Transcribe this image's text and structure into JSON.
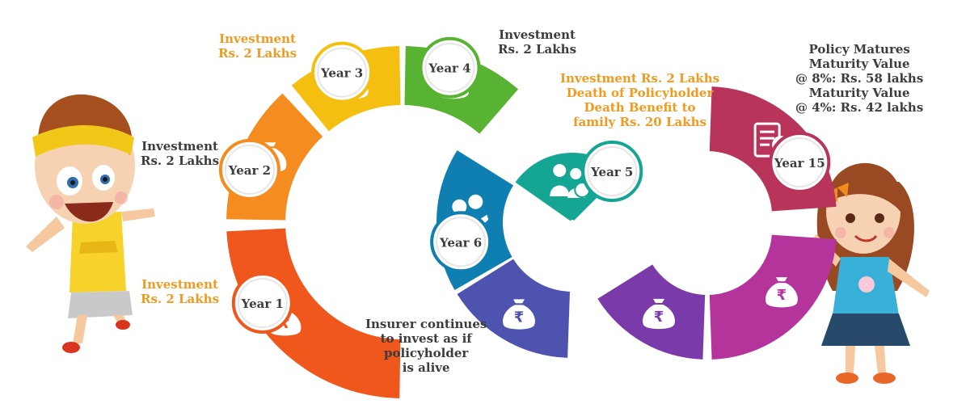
{
  "steps": [
    {
      "id": "year1",
      "label": "Year 1",
      "color": "#f0571c",
      "icon": "money-bag-icon"
    },
    {
      "id": "year2",
      "label": "Year 2",
      "color": "#f58c1f",
      "icon": "money-bag-icon"
    },
    {
      "id": "year3",
      "label": "Year 3",
      "color": "#f5bf12",
      "icon": "money-bag-icon"
    },
    {
      "id": "year4",
      "label": "Year 4",
      "color": "#58b333",
      "icon": "money-bag-icon"
    },
    {
      "id": "year5",
      "label": "Year 5",
      "color": "#14a593",
      "icon": "family-icon"
    },
    {
      "id": "year6",
      "label": "Year 6",
      "color": "#0f7fb2",
      "icon": "hand-coins-icon"
    },
    {
      "id": "seg7",
      "label": "",
      "color": "#4e53b0",
      "icon": "money-bag-icon"
    },
    {
      "id": "seg8",
      "label": "",
      "color": "#7b3aaa",
      "icon": "money-bag-icon"
    },
    {
      "id": "seg9",
      "label": "",
      "color": "#b5349b",
      "icon": "money-bag-icon"
    },
    {
      "id": "year15",
      "label": "Year 15",
      "color": "#b8345a",
      "icon": "document-rupee-icon"
    }
  ],
  "captions": {
    "year1": [
      "Investment",
      "Rs. 2 Lakhs"
    ],
    "year2": [
      "Investment",
      "Rs. 2 Lakhs"
    ],
    "year3": [
      "Investment",
      "Rs. 2 Lakhs"
    ],
    "year4": [
      "Investment",
      "Rs. 2 Lakhs"
    ],
    "year5": [
      "Investment Rs. 2 Lakhs",
      "Death of Policyholder",
      "Death Benefit to",
      "family Rs. 20 Lakhs"
    ],
    "year6": [
      "Insurer continues",
      "to invest as if",
      "policyholder",
      "is alive"
    ],
    "year15": [
      "Policy Matures",
      "Maturity Value",
      "@ 8%: Rs. 58 lakhs",
      "Maturity Value",
      "@ 4%: Rs. 42 lakhs"
    ]
  },
  "icons": {
    "rupee": "₹"
  },
  "colors": {
    "caption_dark": "#3c3c3c",
    "caption_orange": "#f29a1f"
  },
  "illustrations": [
    "boy-character",
    "girl-character"
  ]
}
